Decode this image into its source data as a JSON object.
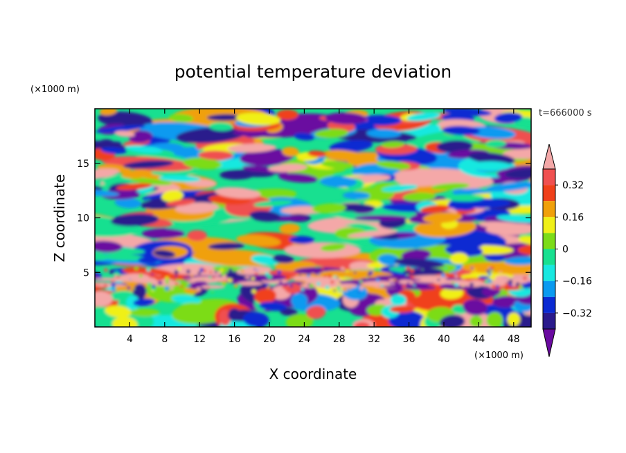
{
  "chart_data": {
    "type": "heatmap",
    "title": "potential temperature deviation",
    "xlabel": "X coordinate",
    "ylabel": "Z coordinate",
    "x_unit": "(×1000 m)",
    "y_unit": "(×1000 m)",
    "time_label": "t=666000 s",
    "xlim": [
      0,
      50
    ],
    "ylim": [
      0,
      20
    ],
    "x_ticks": [
      4,
      8,
      12,
      16,
      20,
      24,
      28,
      32,
      36,
      40,
      44,
      48
    ],
    "y_ticks": [
      5,
      10,
      15
    ],
    "grid": false,
    "colorbar": {
      "levels": [
        -0.4,
        -0.32,
        -0.24,
        -0.16,
        -0.08,
        0,
        0.08,
        0.16,
        0.24,
        0.32,
        0.4
      ],
      "tick_values": [
        0.32,
        0.16,
        0,
        -0.16,
        -0.32
      ],
      "tick_labels": [
        "0.32",
        "0.16",
        "0",
        "−0.16",
        "−0.32"
      ],
      "colors": [
        "#6a0aa0",
        "#2a1a8c",
        "#0a2ad2",
        "#0a9af0",
        "#18e8e0",
        "#18e090",
        "#7cdc18",
        "#f0f018",
        "#f0a00a",
        "#f0401a",
        "#f05050",
        "#f4a8a8"
      ],
      "extend": "both"
    },
    "description_bands": [
      {
        "z_range": [
          0,
          3.5
        ],
        "pattern": "broad warm/cool cells below inversion"
      },
      {
        "z_range": [
          3.5,
          4.5
        ],
        "pattern": "strong positive layer (pink) at inversion"
      },
      {
        "z_range": [
          4.5,
          20
        ],
        "pattern": "stratified elongated alternating anomalies"
      }
    ]
  }
}
